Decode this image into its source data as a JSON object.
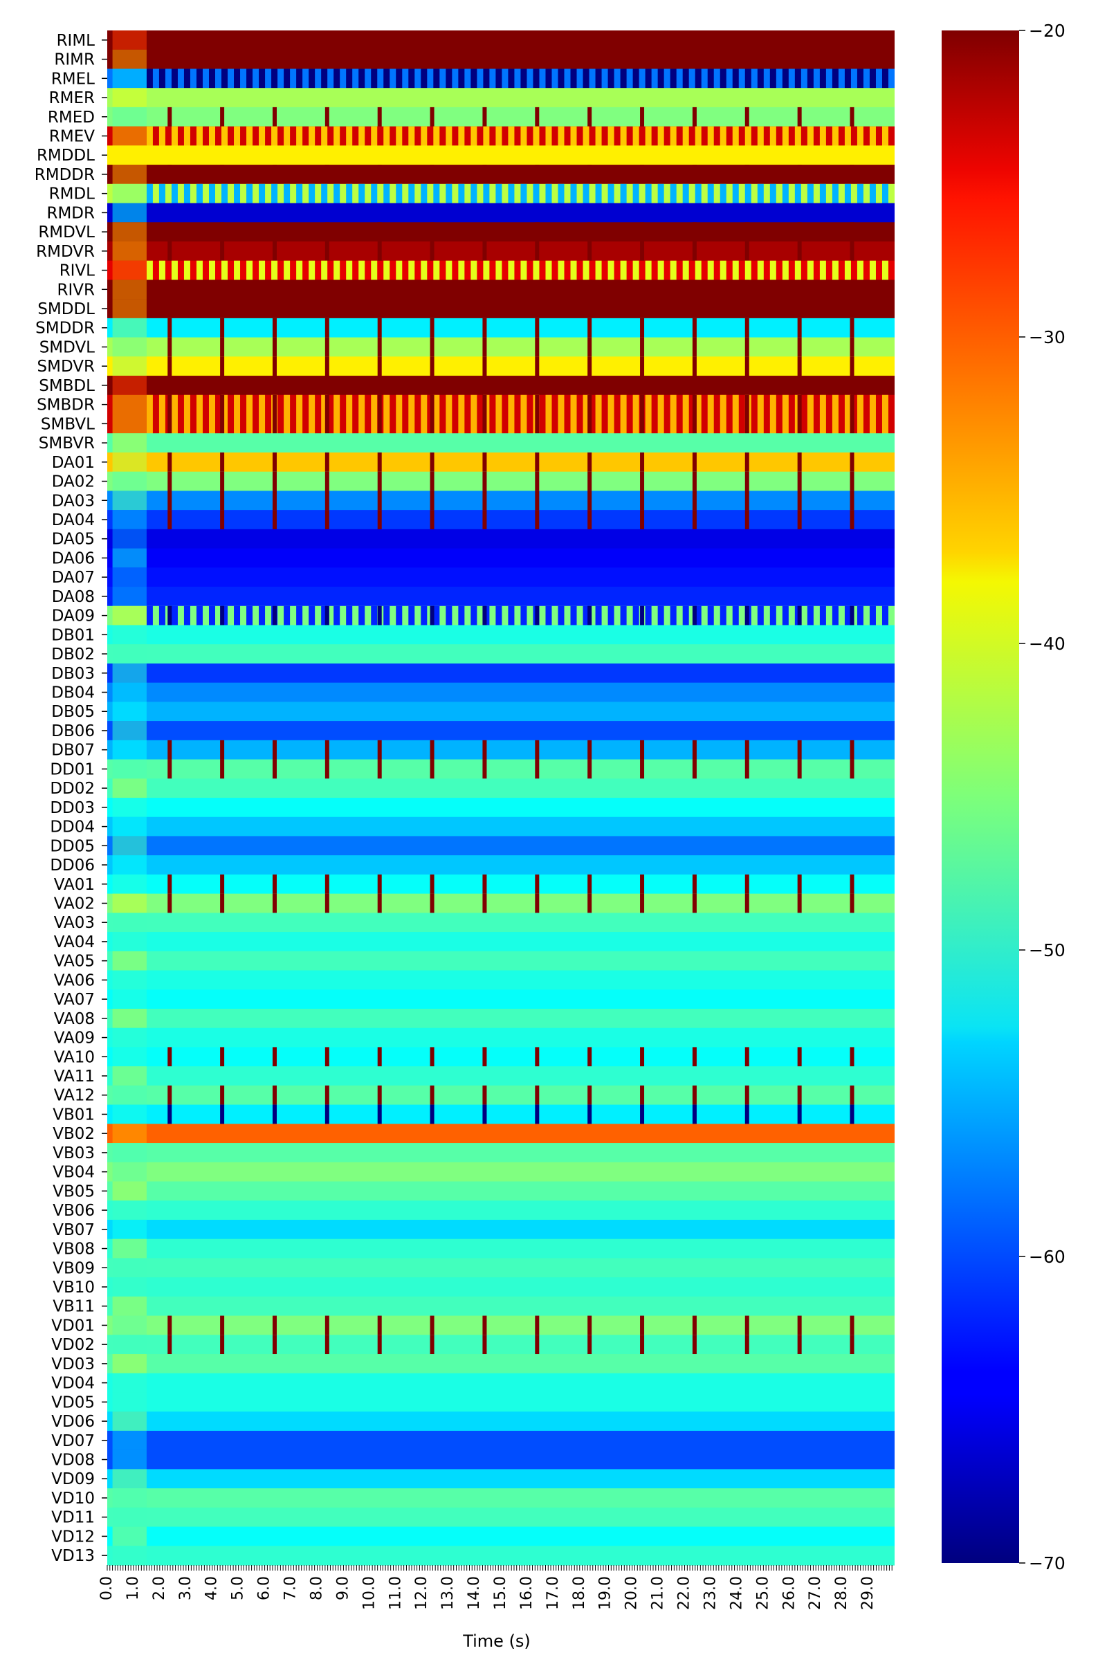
{
  "chart_data": {
    "type": "heatmap",
    "title": "",
    "xlabel": "Time (s)",
    "ylabel": "",
    "x_range": [
      0,
      30
    ],
    "x_tick_labels": [
      "0.0",
      "1.0",
      "2.0",
      "3.0",
      "4.0",
      "5.0",
      "6.0",
      "7.0",
      "8.0",
      "9.0",
      "10.0",
      "11.0",
      "12.0",
      "13.0",
      "14.0",
      "15.0",
      "16.0",
      "17.0",
      "18.0",
      "19.0",
      "20.0",
      "21.0",
      "22.0",
      "23.0",
      "24.0",
      "25.0",
      "26.0",
      "27.0",
      "28.0",
      "29.0"
    ],
    "rows": [
      "RIML",
      "RIMR",
      "RMEL",
      "RMER",
      "RMED",
      "RMEV",
      "RMDDL",
      "RMDDR",
      "RMDL",
      "RMDR",
      "RMDVL",
      "RMDVR",
      "RIVL",
      "RIVR",
      "SMDDL",
      "SMDDR",
      "SMDVL",
      "SMDVR",
      "SMBDL",
      "SMBDR",
      "SMBVL",
      "SMBVR",
      "DA01",
      "DA02",
      "DA03",
      "DA04",
      "DA05",
      "DA06",
      "DA07",
      "DA08",
      "DA09",
      "DB01",
      "DB02",
      "DB03",
      "DB04",
      "DB05",
      "DB06",
      "DB07",
      "DD01",
      "DD02",
      "DD03",
      "DD04",
      "DD05",
      "DD06",
      "VA01",
      "VA02",
      "VA03",
      "VA04",
      "VA05",
      "VA06",
      "VA07",
      "VA08",
      "VA09",
      "VA10",
      "VA11",
      "VA12",
      "VB01",
      "VB02",
      "VB03",
      "VB04",
      "VB05",
      "VB06",
      "VB07",
      "VB08",
      "VB09",
      "VB10",
      "VB11",
      "VD01",
      "VD02",
      "VD03",
      "VD04",
      "VD05",
      "VD06",
      "VD07",
      "VD08",
      "VD09",
      "VD10",
      "VD11",
      "VD12",
      "VD13"
    ],
    "colormap": "jet",
    "colorbar": {
      "vmin": -70,
      "vmax": -20,
      "ticks": [
        -20,
        -30,
        -40,
        -50,
        -60,
        -70
      ],
      "tick_labels": [
        "−20",
        "−30",
        "−40",
        "−50",
        "−60",
        "−70"
      ]
    },
    "burst_period_s": 2.0,
    "transient_end_s": 1.5,
    "row_values": [
      {
        "base": -20,
        "pattern": "flat"
      },
      {
        "base": -20,
        "pattern": "flat"
      },
      {
        "base": -58,
        "alt": -70,
        "pattern": "alternating"
      },
      {
        "base": -43,
        "pattern": "flat"
      },
      {
        "base": -45,
        "pattern": "flat"
      },
      {
        "base": -24,
        "alt": -36,
        "pattern": "alternating"
      },
      {
        "base": -38,
        "pattern": "flat"
      },
      {
        "base": -20,
        "pattern": "flat"
      },
      {
        "base": -42,
        "alt": -55,
        "pattern": "alternating"
      },
      {
        "base": -66,
        "pattern": "flat"
      },
      {
        "base": -20,
        "pattern": "flat"
      },
      {
        "base": -22,
        "pattern": "flat"
      },
      {
        "base": -25,
        "alt": -40,
        "pattern": "alternating"
      },
      {
        "base": -20,
        "pattern": "flat"
      },
      {
        "base": -20,
        "pattern": "flat"
      },
      {
        "base": -52,
        "pattern": "flat"
      },
      {
        "base": -43,
        "pattern": "flat"
      },
      {
        "base": -38,
        "pattern": "flat"
      },
      {
        "base": -20,
        "pattern": "flat"
      },
      {
        "base": -24,
        "alt": -35,
        "pattern": "alternating"
      },
      {
        "base": -24,
        "alt": -35,
        "pattern": "alternating"
      },
      {
        "base": -47,
        "pattern": "flat"
      },
      {
        "base": -36,
        "pattern": "flat"
      },
      {
        "base": -45,
        "pattern": "flat"
      },
      {
        "base": -57,
        "pattern": "flat"
      },
      {
        "base": -61,
        "pattern": "flat"
      },
      {
        "base": -65,
        "pattern": "flat"
      },
      {
        "base": -64,
        "pattern": "flat"
      },
      {
        "base": -63,
        "pattern": "flat"
      },
      {
        "base": -62,
        "pattern": "flat"
      },
      {
        "base": -45,
        "alt": -62,
        "pattern": "alternating"
      },
      {
        "base": -50,
        "pattern": "flat"
      },
      {
        "base": -48,
        "pattern": "flat"
      },
      {
        "base": -61,
        "pattern": "flat"
      },
      {
        "base": -57,
        "pattern": "flat"
      },
      {
        "base": -55,
        "pattern": "flat"
      },
      {
        "base": -60,
        "pattern": "flat"
      },
      {
        "base": -55,
        "pattern": "flat"
      },
      {
        "base": -47,
        "pattern": "flat"
      },
      {
        "base": -48,
        "pattern": "flat"
      },
      {
        "base": -51,
        "pattern": "flat"
      },
      {
        "base": -54,
        "pattern": "flat"
      },
      {
        "base": -58,
        "pattern": "flat"
      },
      {
        "base": -54,
        "pattern": "flat"
      },
      {
        "base": -51,
        "pattern": "flat"
      },
      {
        "base": -45,
        "pattern": "flat"
      },
      {
        "base": -48,
        "pattern": "flat"
      },
      {
        "base": -50,
        "pattern": "flat"
      },
      {
        "base": -48,
        "pattern": "flat"
      },
      {
        "base": -50,
        "pattern": "flat"
      },
      {
        "base": -51,
        "pattern": "flat"
      },
      {
        "base": -48,
        "pattern": "flat"
      },
      {
        "base": -50,
        "pattern": "flat"
      },
      {
        "base": -51,
        "pattern": "flat"
      },
      {
        "base": -49,
        "pattern": "flat"
      },
      {
        "base": -47,
        "pattern": "flat"
      },
      {
        "base": -52,
        "pattern": "flat"
      },
      {
        "base": -31,
        "pattern": "flat"
      },
      {
        "base": -47,
        "pattern": "flat"
      },
      {
        "base": -45,
        "pattern": "flat"
      },
      {
        "base": -47,
        "pattern": "flat"
      },
      {
        "base": -49,
        "pattern": "flat"
      },
      {
        "base": -53,
        "pattern": "flat"
      },
      {
        "base": -49,
        "pattern": "flat"
      },
      {
        "base": -48,
        "pattern": "flat"
      },
      {
        "base": -49,
        "pattern": "flat"
      },
      {
        "base": -48,
        "pattern": "flat"
      },
      {
        "base": -45,
        "pattern": "flat"
      },
      {
        "base": -48,
        "pattern": "flat"
      },
      {
        "base": -47,
        "pattern": "flat"
      },
      {
        "base": -50,
        "pattern": "flat"
      },
      {
        "base": -50,
        "pattern": "flat"
      },
      {
        "base": -53,
        "pattern": "flat"
      },
      {
        "base": -60,
        "pattern": "flat"
      },
      {
        "base": -60,
        "pattern": "flat"
      },
      {
        "base": -53,
        "pattern": "flat"
      },
      {
        "base": -47,
        "pattern": "flat"
      },
      {
        "base": -48,
        "pattern": "flat"
      },
      {
        "base": -51,
        "pattern": "flat"
      },
      {
        "base": -49,
        "pattern": "flat"
      }
    ],
    "burst_rows": [
      4,
      7,
      10,
      11,
      13,
      14,
      15,
      16,
      17,
      18,
      19,
      20,
      22,
      23,
      24,
      25,
      30,
      37,
      38,
      44,
      45,
      53,
      55,
      56,
      67,
      68
    ],
    "burst_rows_low": [
      2,
      30,
      56
    ],
    "grid": false,
    "legend": "none"
  }
}
